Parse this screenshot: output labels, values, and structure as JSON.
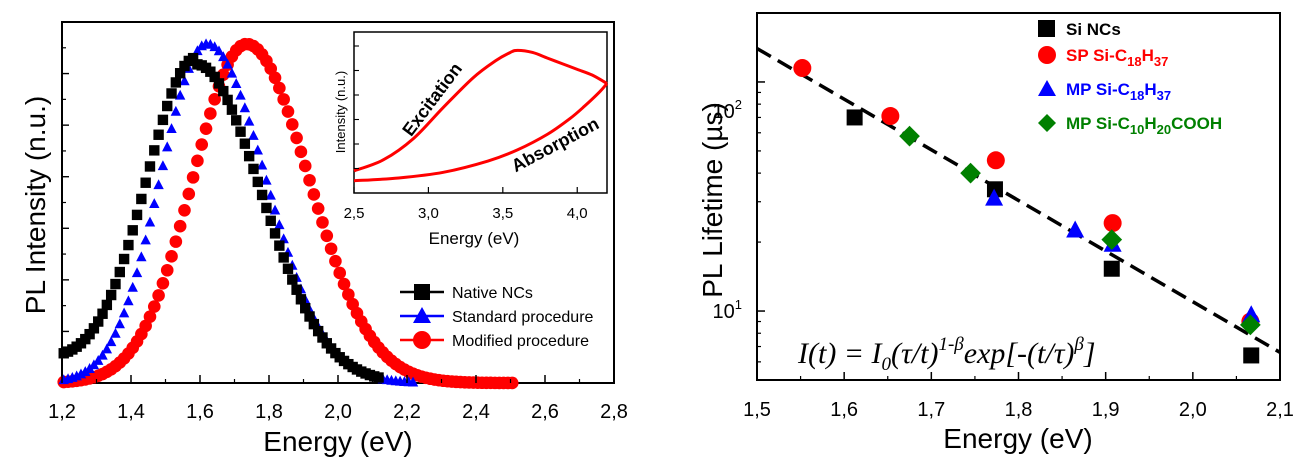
{
  "chart_data": [
    {
      "id": "left",
      "type": "scatter",
      "xlabel": "Energy (eV)",
      "ylabel": "PL Intensity (n.u.)",
      "xlim": [
        1.2,
        2.8
      ],
      "xticks": [
        "1,2",
        "1,4",
        "1,6",
        "1,8",
        "2,0",
        "2,2",
        "2,4",
        "2,6",
        "2,8"
      ],
      "legend_position": "bottom-right",
      "series": [
        {
          "name": "Native NCs",
          "color": "#000000",
          "marker": "square",
          "peak": 1.59,
          "sigma_left": 0.145,
          "sigma_right": 0.185,
          "baseline": 0.06,
          "x_start": 1.205,
          "x_end": 2.12
        },
        {
          "name": "Standard procedure",
          "color": "#0000ff",
          "marker": "triangle",
          "peak": 1.62,
          "sigma_left": 0.135,
          "sigma_right": 0.17,
          "baseline": 0.0,
          "x_start": 1.205,
          "x_end": 2.22
        },
        {
          "name": "Modified procedure",
          "color": "#ff0000",
          "marker": "circle",
          "peak": 1.735,
          "sigma_left": 0.155,
          "sigma_right": 0.18,
          "baseline": 0.0,
          "x_start": 1.205,
          "x_end": 2.51
        }
      ],
      "inset": {
        "xlabel": "Energy (eV)",
        "ylabel": "Intensity (n.u.)",
        "xlim": [
          2.5,
          4.2
        ],
        "xticks": [
          "2,5",
          "3,0",
          "3,5",
          "4,0"
        ],
        "annotations": [
          "Excitation",
          "Absorption"
        ],
        "excitation": {
          "x": [
            2.5,
            2.7,
            2.9,
            3.1,
            3.3,
            3.45,
            3.55,
            3.6,
            3.7,
            3.8,
            3.9,
            4.0,
            4.1,
            4.2
          ],
          "y": [
            0.1,
            0.18,
            0.33,
            0.55,
            0.76,
            0.88,
            0.94,
            0.955,
            0.94,
            0.9,
            0.86,
            0.82,
            0.78,
            0.72
          ]
        },
        "absorption": {
          "x": [
            2.5,
            2.8,
            3.1,
            3.4,
            3.6,
            3.8,
            3.95,
            4.05,
            4.15,
            4.2
          ],
          "y": [
            0.03,
            0.05,
            0.09,
            0.17,
            0.25,
            0.36,
            0.47,
            0.56,
            0.66,
            0.72
          ]
        }
      }
    },
    {
      "id": "right",
      "type": "scatter",
      "xlabel": "Energy (eV)",
      "ylabel": "PL Lifetime (µs)",
      "xlim": [
        1.5,
        2.1
      ],
      "ylim": [
        5,
        200
      ],
      "yscale": "log",
      "xticks": [
        "1,5",
        "1,6",
        "1,7",
        "1,8",
        "1,9",
        "2,0",
        "2,1"
      ],
      "yticks": [
        "10",
        "10"
      ],
      "ytick_exponents": [
        "1",
        "2"
      ],
      "legend_position": "top-right",
      "fit_line": {
        "style": "dashed",
        "x": [
          1.5,
          2.1
        ],
        "y": [
          140,
          6.6
        ]
      },
      "equation": {
        "lhs": "I(t) = I",
        "lhs_sub": "0",
        "mid": "(τ/t)",
        "mid_sup": "1-β",
        "exp": "exp[-(t/τ)",
        "exp_sup": "β",
        "end": "]"
      },
      "series": [
        {
          "name": "Si NCs",
          "color": "#000000",
          "marker": "square",
          "x": [
            1.612,
            1.773,
            1.907,
            2.067
          ],
          "y": [
            70,
            34,
            15.3,
            6.4
          ]
        },
        {
          "name": "SP Si-C",
          "sub1": "18",
          "mid": "H",
          "sub2": "37",
          "color": "#ff0000",
          "marker": "circle",
          "x": [
            1.552,
            1.653,
            1.774,
            1.908,
            2.066
          ],
          "y": [
            115,
            71,
            45.5,
            24.2,
            9.0
          ]
        },
        {
          "name": "MP Si-C",
          "sub1": "18",
          "mid": "H",
          "sub2": "37",
          "color": "#0000ff",
          "marker": "triangle",
          "x": [
            1.772,
            1.865,
            1.908,
            2.067
          ],
          "y": [
            31,
            22.5,
            19.5,
            9.6
          ]
        },
        {
          "name": "MP Si-C",
          "sub1": "10",
          "mid": "H",
          "sub2": "20",
          "tail": "COOH",
          "color": "#008000",
          "marker": "diamond",
          "x": [
            1.675,
            1.745,
            1.907,
            2.066
          ],
          "y": [
            58,
            40,
            20.5,
            8.7
          ]
        }
      ]
    }
  ]
}
